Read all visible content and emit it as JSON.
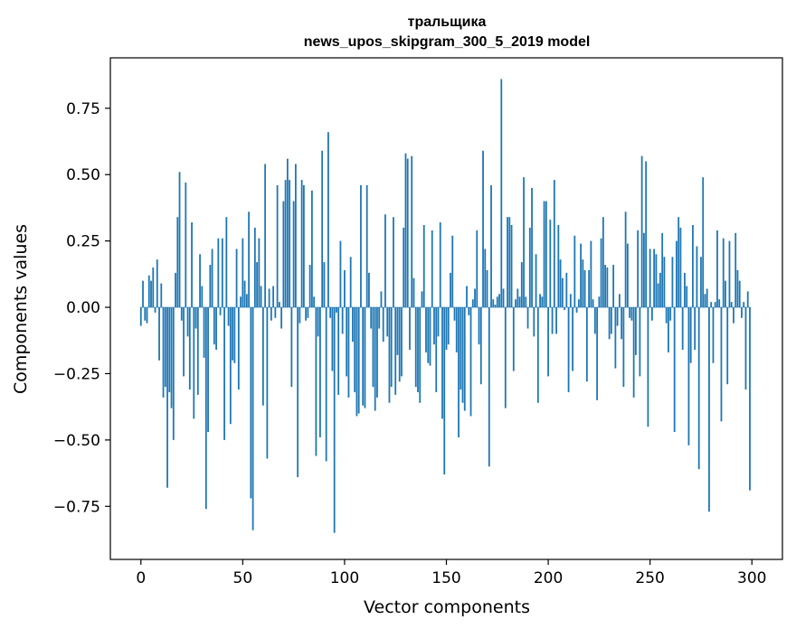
{
  "chart_data": {
    "type": "bar",
    "title": "тральщика",
    "subtitle": "news_upos_skipgram_300_5_2019 model",
    "xlabel": "Vector components",
    "ylabel": "Components values",
    "xlim": [
      -15,
      315
    ],
    "ylim": [
      -0.95,
      0.94
    ],
    "xticks": [
      0,
      50,
      100,
      150,
      200,
      250,
      300
    ],
    "xtick_labels": [
      "0",
      "50",
      "100",
      "150",
      "200",
      "250",
      "300"
    ],
    "yticks": [
      -0.75,
      -0.5,
      -0.25,
      0.0,
      0.25,
      0.5,
      0.75
    ],
    "ytick_labels": [
      "−0.75",
      "−0.50",
      "−0.25",
      "0.00",
      "0.25",
      "0.50",
      "0.75"
    ],
    "grid": false,
    "bar_color": "#1f77b4",
    "x_start": 0,
    "values": [
      -0.07,
      0.1,
      -0.05,
      -0.06,
      0.12,
      0.1,
      0.15,
      -0.02,
      0.18,
      -0.2,
      0.09,
      -0.34,
      -0.3,
      -0.68,
      -0.32,
      -0.38,
      -0.5,
      0.13,
      0.34,
      0.51,
      -0.05,
      -0.26,
      0.47,
      -0.11,
      -0.31,
      0.32,
      -0.42,
      -0.08,
      -0.33,
      0.2,
      0.08,
      -0.19,
      -0.76,
      -0.47,
      0.16,
      0.22,
      -0.14,
      -0.16,
      0.26,
      -0.03,
      0.26,
      -0.5,
      0.34,
      -0.07,
      -0.44,
      -0.2,
      -0.21,
      0.22,
      -0.31,
      0.04,
      0.26,
      0.1,
      0.05,
      0.36,
      -0.72,
      -0.84,
      0.3,
      0.17,
      0.26,
      0.08,
      -0.37,
      0.54,
      -0.57,
      0.07,
      -0.05,
      0.08,
      -0.04,
      0.46,
      0.02,
      -0.08,
      0.4,
      0.48,
      0.56,
      0.48,
      -0.3,
      0.4,
      0.54,
      -0.64,
      -0.06,
      0.48,
      0.46,
      -0.05,
      -0.04,
      0.16,
      0.44,
      0.04,
      -0.56,
      -0.11,
      -0.49,
      0.59,
      0.17,
      -0.58,
      0.66,
      -0.04,
      -0.24,
      -0.85,
      -0.02,
      -0.33,
      0.25,
      -0.1,
      0.14,
      -0.26,
      -0.34,
      0.19,
      -0.13,
      -0.32,
      -0.41,
      -0.4,
      0.46,
      -0.37,
      -0.38,
      0.46,
      0.13,
      -0.08,
      -0.3,
      -0.39,
      -0.34,
      -0.08,
      0.06,
      -0.13,
      0.35,
      -0.11,
      -0.36,
      -0.3,
      0.34,
      -0.33,
      -0.18,
      -0.28,
      -0.26,
      0.3,
      0.58,
      0.56,
      -0.16,
      0.57,
      0.11,
      -0.3,
      -0.32,
      -0.36,
      0.06,
      0.31,
      -0.17,
      -0.21,
      -0.22,
      0.29,
      -0.14,
      -0.32,
      -0.11,
      0.32,
      -0.42,
      -0.63,
      -0.16,
      -0.14,
      0.13,
      0.27,
      -0.05,
      -0.17,
      -0.49,
      -0.31,
      -0.36,
      -0.39,
      0.08,
      -0.03,
      -0.41,
      0.03,
      0.07,
      0.29,
      -0.14,
      -0.29,
      0.59,
      0.22,
      0.14,
      -0.6,
      0.46,
      0.03,
      0.01,
      0.04,
      0.05,
      0.86,
      0.07,
      -0.38,
      0.34,
      0.34,
      0.31,
      -0.24,
      0.03,
      0.07,
      0.04,
      0.17,
      0.49,
      0.04,
      -0.08,
      0.3,
      0.45,
      -0.11,
      0.2,
      -0.36,
      0.05,
      0.04,
      0.4,
      0.4,
      -0.26,
      0.33,
      -0.1,
      0.48,
      -0.1,
      0.31,
      0.18,
      0.11,
      -0.01,
      0.13,
      -0.32,
      0.05,
      -0.24,
      0.27,
      -0.02,
      0.03,
      0.24,
      0.18,
      0.14,
      -0.28,
      0.14,
      0.25,
      0.03,
      -0.1,
      -0.35,
      0.04,
      0.26,
      0.34,
      0.16,
      0.15,
      -0.12,
      -0.1,
      0.16,
      -0.23,
      -0.07,
      0.05,
      -0.12,
      -0.3,
      0.36,
      0.24,
      -0.04,
      -0.05,
      -0.34,
      -0.18,
      0.29,
      -0.26,
      0.57,
      0.28,
      0.55,
      -0.45,
      0.22,
      -0.05,
      0.22,
      0.2,
      0.09,
      0.13,
      0.28,
      0.19,
      -0.06,
      -0.17,
      -0.05,
      0.19,
      -0.47,
      0.25,
      0.34,
      0.3,
      -0.16,
      0.13,
      0.08,
      -0.52,
      -0.21,
      0.31,
      -0.16,
      0.23,
      -0.61,
      0.19,
      0.49,
      0.05,
      0.07,
      -0.77,
      0.02,
      -0.21,
      0.02,
      0.29,
      0.03,
      -0.43,
      0.26,
      0.1,
      -0.29,
      0.25,
      0.02,
      -0.06,
      0.28,
      0.14,
      0.1,
      -0.04,
      0.02,
      -0.31,
      0.06,
      -0.69
    ]
  }
}
